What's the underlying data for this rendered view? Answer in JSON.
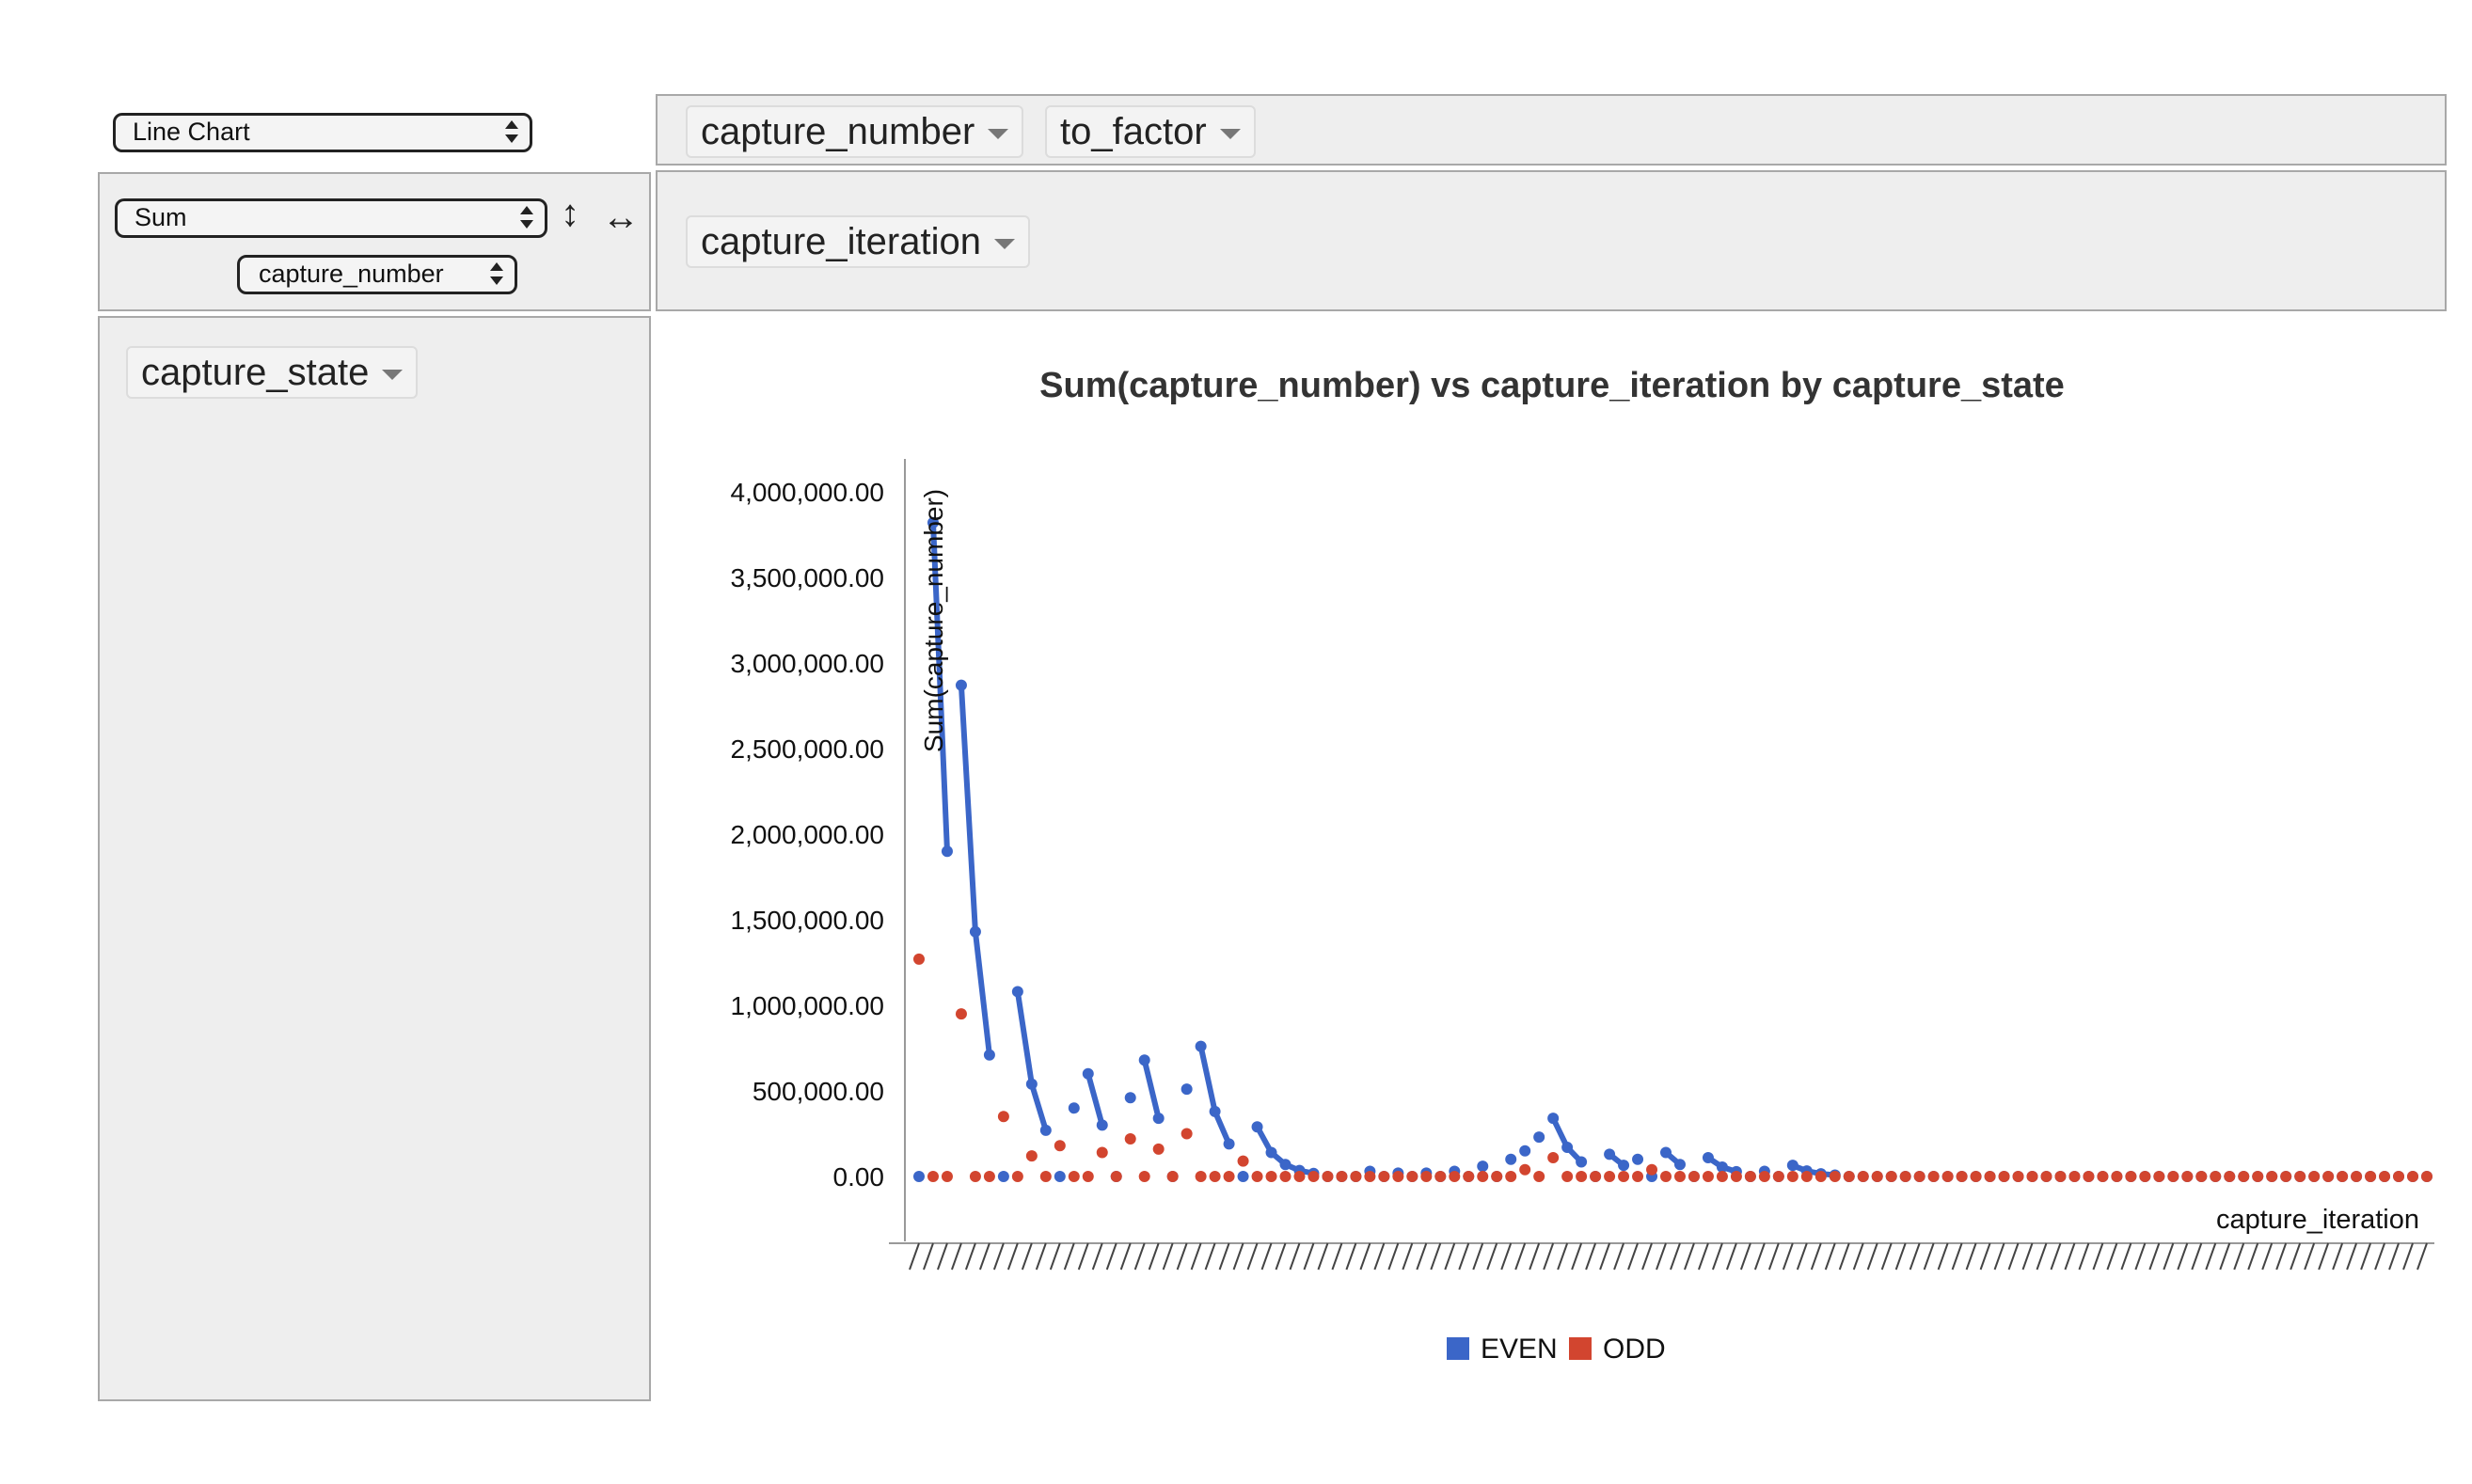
{
  "controls": {
    "renderer": "Line Chart",
    "aggregator": "Sum",
    "aggregator_field": "capture_number",
    "vertical_swap_icon": "↕",
    "horizontal_swap_icon": "↔"
  },
  "cols_area": {
    "pills": [
      "capture_number",
      "to_factor"
    ]
  },
  "rows_axis": {
    "pills": [
      "capture_iteration"
    ]
  },
  "rows_area": {
    "pills": [
      "capture_state"
    ]
  },
  "colors": {
    "even": "#3b66c8",
    "odd": "#d2452f",
    "panel": "#eeeeee"
  },
  "chart_data": {
    "type": "line",
    "title": "Sum(capture_number) vs capture_iteration by capture_state",
    "xlabel": "capture_iteration",
    "ylabel": "Sum(capture_number)",
    "ylim": [
      0,
      4000000
    ],
    "yticks": [
      "4,000,000.00",
      "3,500,000.00",
      "3,000,000.00",
      "2,500,000.00",
      "2,000,000.00",
      "1,500,000.00",
      "1,000,000.00",
      "500,000.00",
      "0.00"
    ],
    "x_count": 108,
    "legend": [
      "EVEN",
      "ODD"
    ],
    "legend_position": "bottom",
    "series": [
      {
        "name": "EVEN",
        "color": "#3b66c8",
        "segments": [
          [
            [
              2,
              3820000
            ],
            [
              3,
              1900000
            ]
          ],
          [
            [
              4,
              2870000
            ],
            [
              5,
              1430000
            ],
            [
              6,
              710000
            ]
          ],
          [
            [
              8,
              1080000
            ],
            [
              9,
              540000
            ],
            [
              10,
              270000
            ]
          ],
          [
            [
              13,
              600000
            ],
            [
              14,
              300000
            ]
          ],
          [
            [
              17,
              680000
            ],
            [
              18,
              340000
            ]
          ],
          [
            [
              21,
              760000
            ],
            [
              22,
              380000
            ],
            [
              23,
              190000
            ]
          ],
          [
            [
              25,
              290000
            ],
            [
              26,
              140000
            ],
            [
              27,
              70000
            ],
            [
              28,
              35000
            ],
            [
              29,
              18000
            ]
          ],
          [
            [
              46,
              340000
            ],
            [
              47,
              170000
            ],
            [
              48,
              85000
            ]
          ],
          [
            [
              50,
              130000
            ],
            [
              51,
              65000
            ]
          ],
          [
            [
              54,
              140000
            ],
            [
              55,
              70000
            ]
          ],
          [
            [
              57,
              110000
            ],
            [
              58,
              55000
            ],
            [
              59,
              28000
            ]
          ],
          [
            [
              63,
              65000
            ],
            [
              64,
              32000
            ],
            [
              65,
              16000
            ],
            [
              66,
              8000
            ]
          ]
        ],
        "points": [
          [
            1,
            0
          ],
          [
            7,
            0
          ],
          [
            11,
            0
          ],
          [
            12,
            400000
          ],
          [
            15,
            0
          ],
          [
            16,
            460000
          ],
          [
            19,
            0
          ],
          [
            20,
            510000
          ],
          [
            24,
            0
          ],
          [
            30,
            0
          ],
          [
            31,
            0
          ],
          [
            32,
            0
          ],
          [
            33,
            30000
          ],
          [
            34,
            0
          ],
          [
            35,
            20000
          ],
          [
            36,
            0
          ],
          [
            37,
            20000
          ],
          [
            38,
            0
          ],
          [
            39,
            30000
          ],
          [
            40,
            0
          ],
          [
            41,
            60000
          ],
          [
            42,
            0
          ],
          [
            43,
            100000
          ],
          [
            44,
            150000
          ],
          [
            45,
            230000
          ],
          [
            49,
            0
          ],
          [
            52,
            100000
          ],
          [
            53,
            0
          ],
          [
            56,
            0
          ],
          [
            60,
            0
          ],
          [
            61,
            30000
          ],
          [
            62,
            0
          ],
          [
            67,
            0
          ],
          [
            68,
            0
          ],
          [
            69,
            0
          ],
          [
            70,
            0
          ],
          [
            71,
            0
          ],
          [
            72,
            0
          ],
          [
            73,
            0
          ],
          [
            74,
            0
          ],
          [
            75,
            0
          ],
          [
            76,
            0
          ],
          [
            77,
            0
          ],
          [
            78,
            0
          ],
          [
            79,
            0
          ],
          [
            80,
            0
          ],
          [
            81,
            0
          ],
          [
            82,
            0
          ],
          [
            83,
            0
          ],
          [
            84,
            0
          ],
          [
            85,
            0
          ],
          [
            86,
            0
          ],
          [
            87,
            0
          ],
          [
            88,
            0
          ],
          [
            89,
            0
          ],
          [
            90,
            0
          ],
          [
            91,
            0
          ],
          [
            92,
            0
          ],
          [
            93,
            0
          ],
          [
            94,
            0
          ],
          [
            95,
            0
          ],
          [
            96,
            0
          ],
          [
            97,
            0
          ],
          [
            98,
            0
          ],
          [
            99,
            0
          ],
          [
            100,
            0
          ],
          [
            101,
            0
          ],
          [
            102,
            0
          ],
          [
            103,
            0
          ],
          [
            104,
            0
          ],
          [
            105,
            0
          ],
          [
            106,
            0
          ],
          [
            107,
            0
          ],
          [
            108,
            0
          ]
        ]
      },
      {
        "name": "ODD",
        "color": "#d2452f",
        "points": [
          [
            1,
            1270000
          ],
          [
            2,
            0
          ],
          [
            3,
            0
          ],
          [
            4,
            950000
          ],
          [
            5,
            0
          ],
          [
            6,
            0
          ],
          [
            7,
            350000
          ],
          [
            8,
            0
          ],
          [
            9,
            120000
          ],
          [
            10,
            0
          ],
          [
            11,
            180000
          ],
          [
            12,
            0
          ],
          [
            13,
            0
          ],
          [
            14,
            140000
          ],
          [
            15,
            0
          ],
          [
            16,
            220000
          ],
          [
            17,
            0
          ],
          [
            18,
            160000
          ],
          [
            19,
            0
          ],
          [
            20,
            250000
          ],
          [
            21,
            0
          ],
          [
            22,
            0
          ],
          [
            23,
            0
          ],
          [
            24,
            90000
          ],
          [
            25,
            0
          ],
          [
            26,
            0
          ],
          [
            27,
            0
          ],
          [
            28,
            0
          ],
          [
            29,
            0
          ],
          [
            30,
            0
          ],
          [
            31,
            0
          ],
          [
            32,
            0
          ],
          [
            33,
            0
          ],
          [
            34,
            0
          ],
          [
            35,
            0
          ],
          [
            36,
            0
          ],
          [
            37,
            0
          ],
          [
            38,
            0
          ],
          [
            39,
            0
          ],
          [
            40,
            0
          ],
          [
            41,
            0
          ],
          [
            42,
            0
          ],
          [
            43,
            0
          ],
          [
            44,
            40000
          ],
          [
            45,
            0
          ],
          [
            46,
            110000
          ],
          [
            47,
            0
          ],
          [
            48,
            0
          ],
          [
            49,
            0
          ],
          [
            50,
            0
          ],
          [
            51,
            0
          ],
          [
            52,
            0
          ],
          [
            53,
            40000
          ],
          [
            54,
            0
          ],
          [
            55,
            0
          ],
          [
            56,
            0
          ],
          [
            57,
            0
          ],
          [
            58,
            0
          ],
          [
            59,
            0
          ],
          [
            60,
            0
          ],
          [
            61,
            0
          ],
          [
            62,
            0
          ],
          [
            63,
            0
          ],
          [
            64,
            0
          ],
          [
            65,
            0
          ],
          [
            66,
            0
          ],
          [
            67,
            0
          ],
          [
            68,
            0
          ],
          [
            69,
            0
          ],
          [
            70,
            0
          ],
          [
            71,
            0
          ],
          [
            72,
            0
          ],
          [
            73,
            0
          ],
          [
            74,
            0
          ],
          [
            75,
            0
          ],
          [
            76,
            0
          ],
          [
            77,
            0
          ],
          [
            78,
            0
          ],
          [
            79,
            0
          ],
          [
            80,
            0
          ],
          [
            81,
            0
          ],
          [
            82,
            0
          ],
          [
            83,
            0
          ],
          [
            84,
            0
          ],
          [
            85,
            0
          ],
          [
            86,
            0
          ],
          [
            87,
            0
          ],
          [
            88,
            0
          ],
          [
            89,
            0
          ],
          [
            90,
            0
          ],
          [
            91,
            0
          ],
          [
            92,
            0
          ],
          [
            93,
            0
          ],
          [
            94,
            0
          ],
          [
            95,
            0
          ],
          [
            96,
            0
          ],
          [
            97,
            0
          ],
          [
            98,
            0
          ],
          [
            99,
            0
          ],
          [
            100,
            0
          ],
          [
            101,
            0
          ],
          [
            102,
            0
          ],
          [
            103,
            0
          ],
          [
            104,
            0
          ],
          [
            105,
            0
          ],
          [
            106,
            0
          ],
          [
            107,
            0
          ],
          [
            108,
            0
          ]
        ]
      }
    ]
  }
}
